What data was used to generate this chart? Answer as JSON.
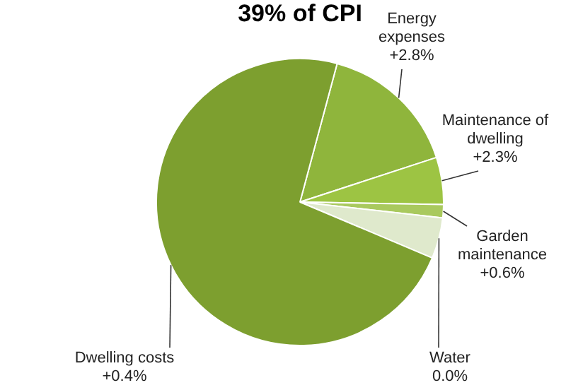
{
  "chart_data": {
    "type": "pie",
    "title": "39% of CPI",
    "categories": [
      "Energy expenses",
      "Maintenance of dwelling",
      "Garden maintenance",
      "Water",
      "Dwelling costs"
    ],
    "values": [
      15.8,
      5.3,
      1.5,
      4.6,
      72.8
    ],
    "colors": [
      "#8fb53c",
      "#9dc443",
      "#a9c95e",
      "#dfe9cc",
      "#7d9f2f"
    ],
    "annotations": [
      "+2.8%",
      "+2.3%",
      "+0.6%",
      "0.0%",
      "+0.4%"
    ],
    "legend": false
  }
}
